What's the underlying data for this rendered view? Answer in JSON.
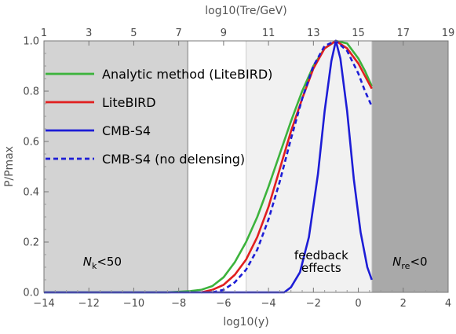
{
  "chart_data": {
    "type": "line",
    "title": "",
    "xlabel": "log10(y)",
    "ylabel": "P/Pmax",
    "top_xlabel": "log10(Tre/GeV)",
    "xlim": [
      -14,
      4
    ],
    "ylim": [
      0,
      1.0
    ],
    "x_ticks": [
      -14,
      -12,
      -10,
      -8,
      -6,
      -4,
      -2,
      0,
      2,
      4
    ],
    "y_ticks": [
      0.0,
      0.2,
      0.4,
      0.6,
      0.8,
      1.0
    ],
    "top_ticks": [
      {
        "label": "1",
        "x": -14
      },
      {
        "label": "3",
        "x": -12
      },
      {
        "label": "5",
        "x": -10
      },
      {
        "label": "7",
        "x": -8
      },
      {
        "label": "9",
        "x": -6
      },
      {
        "label": "11",
        "x": -4
      },
      {
        "label": "13",
        "x": -2
      },
      {
        "label": "15",
        "x": 0
      },
      {
        "label": "17",
        "x": 2
      },
      {
        "label": "19",
        "x": 4
      }
    ],
    "regions": [
      {
        "name": "Nk<50",
        "x0": -14,
        "x1": -7.6,
        "color": "#d3d3d3",
        "label_main": "N",
        "label_sub": "k",
        "label_rest": "<50",
        "label_x": -11.4,
        "label_y": 0.1
      },
      {
        "name": "feedback effects",
        "x0": -5.0,
        "x1": 0.6,
        "color": "#f1f1f1",
        "label_lines": [
          "feedback",
          "effects"
        ],
        "label_x": -1.65,
        "label_y": 0.1
      },
      {
        "name": "Nre<0",
        "x0": 0.6,
        "x1": 4,
        "color": "#a9a9a9",
        "label_main": "N",
        "label_sub": "re",
        "label_rest": "<0",
        "label_x": 2.3,
        "label_y": 0.1
      }
    ],
    "series": [
      {
        "name": "Analytic method (LiteBIRD)",
        "color": "#3cb33c",
        "dash": "none",
        "x": [
          -14,
          -8.5,
          -7.5,
          -7,
          -6.5,
          -6,
          -5.5,
          -5,
          -4.5,
          -4,
          -3.5,
          -3,
          -2.5,
          -2,
          -1.5,
          -1,
          -0.5,
          0,
          0.3,
          0.6
        ],
        "y": [
          0,
          0.0,
          0.005,
          0.01,
          0.025,
          0.06,
          0.12,
          0.2,
          0.3,
          0.42,
          0.55,
          0.68,
          0.8,
          0.9,
          0.97,
          1.0,
          0.99,
          0.93,
          0.88,
          0.82
        ]
      },
      {
        "name": "LiteBIRD",
        "color": "#e11f1f",
        "dash": "none",
        "x": [
          -7,
          -6.5,
          -6,
          -5.5,
          -5,
          -4.5,
          -4,
          -3.5,
          -3,
          -2.5,
          -2,
          -1.5,
          -1,
          -0.5,
          0,
          0.3,
          0.6
        ],
        "y": [
          0.0,
          0.01,
          0.03,
          0.07,
          0.13,
          0.22,
          0.34,
          0.49,
          0.64,
          0.77,
          0.89,
          0.97,
          1.0,
          0.97,
          0.91,
          0.86,
          0.81
        ]
      },
      {
        "name": "CMB-S4",
        "color": "#1d1dd6",
        "dash": "none",
        "x": [
          -14,
          -3.3,
          -3.0,
          -2.6,
          -2.2,
          -1.8,
          -1.5,
          -1.2,
          -1.0,
          -0.8,
          -0.5,
          -0.2,
          0.1,
          0.4,
          0.6
        ],
        "y": [
          0,
          0.0,
          0.02,
          0.08,
          0.22,
          0.47,
          0.72,
          0.92,
          1.0,
          0.93,
          0.72,
          0.45,
          0.24,
          0.1,
          0.05
        ]
      },
      {
        "name": "CMB-S4 (no delensing)",
        "color": "#1d1dd6",
        "dash": "6,4",
        "x": [
          -6.5,
          -6,
          -5.5,
          -5,
          -4.5,
          -4,
          -3.5,
          -3,
          -2.5,
          -2,
          -1.5,
          -1,
          -0.5,
          0,
          0.3,
          0.6
        ],
        "y": [
          0.0,
          0.01,
          0.04,
          0.09,
          0.17,
          0.29,
          0.44,
          0.61,
          0.77,
          0.9,
          0.98,
          1.0,
          0.96,
          0.87,
          0.8,
          0.74
        ]
      }
    ],
    "legend": "top-left"
  }
}
